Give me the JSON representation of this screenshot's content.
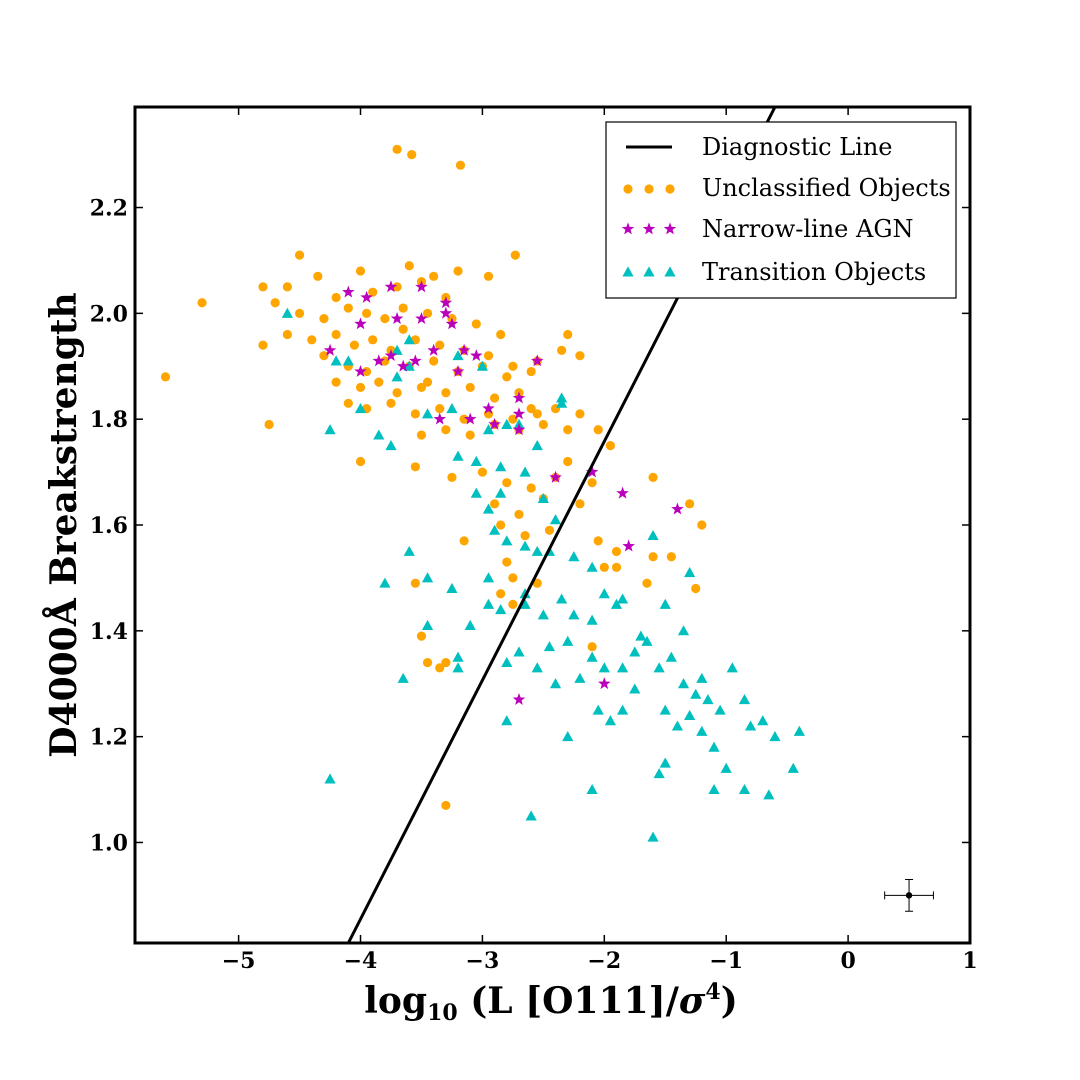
{
  "chart_data": {
    "type": "scatter",
    "xlabel": "log10 (L [O111]/σ4)",
    "xlabel_parts": {
      "prefix": "log",
      "sub": "10",
      "mid": " (L [O111]/",
      "sigma": "σ",
      "sup": "4",
      "suffix": ")"
    },
    "ylabel": "D4000Å Breakstrength",
    "xlim": [
      -5.85,
      1.0
    ],
    "ylim": [
      0.81,
      2.39
    ],
    "x_ticks": [
      -5,
      -4,
      -3,
      -2,
      -1,
      0,
      1
    ],
    "x_tick_labels": [
      "−5",
      "−4",
      "−3",
      "−2",
      "−1",
      "0",
      "1"
    ],
    "y_ticks": [
      1.0,
      1.2,
      1.4,
      1.6,
      1.8,
      2.0,
      2.2
    ],
    "y_tick_labels": [
      "1.0",
      "1.2",
      "1.4",
      "1.6",
      "1.8",
      "2.0",
      "2.2"
    ],
    "grid": false,
    "legend_position": "top-right",
    "line": {
      "name": "Diagnostic Line",
      "x": [
        -4.1,
        -0.6
      ],
      "y": [
        0.81,
        2.39
      ],
      "color": "#000000"
    },
    "error_bar": {
      "x": 0.5,
      "y": 0.9,
      "xerr": 0.2,
      "yerr": 0.03
    },
    "series": [
      {
        "name": "Unclassified Objects",
        "marker": "circle",
        "color": "#FFA500",
        "points": [
          [
            -3.7,
            2.31
          ],
          [
            -3.58,
            2.3
          ],
          [
            -3.18,
            2.28
          ],
          [
            -4.5,
            2.11
          ],
          [
            -2.73,
            2.11
          ],
          [
            -4.35,
            2.07
          ],
          [
            -4.0,
            2.08
          ],
          [
            -3.6,
            2.09
          ],
          [
            -3.4,
            2.07
          ],
          [
            -3.2,
            2.08
          ],
          [
            -2.95,
            2.07
          ],
          [
            -4.8,
            2.05
          ],
          [
            -4.6,
            2.05
          ],
          [
            -4.2,
            2.03
          ],
          [
            -3.9,
            2.04
          ],
          [
            -3.7,
            2.05
          ],
          [
            -3.5,
            2.06
          ],
          [
            -3.3,
            2.03
          ],
          [
            -5.3,
            2.02
          ],
          [
            -4.7,
            2.02
          ],
          [
            -4.5,
            2.0
          ],
          [
            -4.3,
            1.99
          ],
          [
            -4.1,
            2.01
          ],
          [
            -3.95,
            2.0
          ],
          [
            -3.8,
            1.99
          ],
          [
            -3.65,
            2.01
          ],
          [
            -3.45,
            2.0
          ],
          [
            -3.25,
            1.99
          ],
          [
            -3.05,
            1.98
          ],
          [
            -2.85,
            1.96
          ],
          [
            -4.6,
            1.96
          ],
          [
            -4.4,
            1.95
          ],
          [
            -4.2,
            1.96
          ],
          [
            -4.05,
            1.94
          ],
          [
            -3.9,
            1.95
          ],
          [
            -3.75,
            1.93
          ],
          [
            -3.55,
            1.95
          ],
          [
            -3.35,
            1.94
          ],
          [
            -3.15,
            1.93
          ],
          [
            -2.95,
            1.92
          ],
          [
            -2.75,
            1.9
          ],
          [
            -2.55,
            1.91
          ],
          [
            -2.35,
            1.93
          ],
          [
            -2.2,
            1.92
          ],
          [
            -2.3,
            1.96
          ],
          [
            -4.8,
            1.94
          ],
          [
            -4.3,
            1.92
          ],
          [
            -4.1,
            1.9
          ],
          [
            -3.95,
            1.89
          ],
          [
            -3.8,
            1.91
          ],
          [
            -3.6,
            1.9
          ],
          [
            -3.4,
            1.91
          ],
          [
            -3.2,
            1.89
          ],
          [
            -3.0,
            1.9
          ],
          [
            -2.8,
            1.88
          ],
          [
            -2.6,
            1.89
          ],
          [
            -4.2,
            1.87
          ],
          [
            -4.0,
            1.86
          ],
          [
            -3.85,
            1.87
          ],
          [
            -3.7,
            1.85
          ],
          [
            -3.5,
            1.86
          ],
          [
            -3.3,
            1.85
          ],
          [
            -3.1,
            1.86
          ],
          [
            -2.9,
            1.84
          ],
          [
            -2.7,
            1.85
          ],
          [
            -4.1,
            1.83
          ],
          [
            -3.95,
            1.82
          ],
          [
            -3.75,
            1.83
          ],
          [
            -3.55,
            1.81
          ],
          [
            -3.35,
            1.82
          ],
          [
            -3.15,
            1.8
          ],
          [
            -2.95,
            1.81
          ],
          [
            -2.75,
            1.8
          ],
          [
            -2.55,
            1.81
          ],
          [
            -2.4,
            1.82
          ],
          [
            -2.2,
            1.81
          ],
          [
            -2.3,
            1.78
          ],
          [
            -2.5,
            1.79
          ],
          [
            -2.7,
            1.78
          ],
          [
            -2.9,
            1.79
          ],
          [
            -3.1,
            1.77
          ],
          [
            -3.3,
            1.78
          ],
          [
            -3.5,
            1.77
          ],
          [
            -5.6,
            1.88
          ],
          [
            -4.75,
            1.79
          ],
          [
            -4.0,
            1.72
          ],
          [
            -3.55,
            1.71
          ],
          [
            -3.25,
            1.69
          ],
          [
            -3.0,
            1.7
          ],
          [
            -2.8,
            1.68
          ],
          [
            -2.6,
            1.67
          ],
          [
            -2.4,
            1.69
          ],
          [
            -2.3,
            1.72
          ],
          [
            -2.05,
            1.78
          ],
          [
            -1.95,
            1.75
          ],
          [
            -1.6,
            1.69
          ],
          [
            -2.2,
            1.64
          ],
          [
            -2.5,
            1.65
          ],
          [
            -2.7,
            1.62
          ],
          [
            -2.9,
            1.64
          ],
          [
            -2.1,
            1.68
          ],
          [
            -2.85,
            1.6
          ],
          [
            -2.65,
            1.58
          ],
          [
            -2.45,
            1.59
          ],
          [
            -2.05,
            1.57
          ],
          [
            -1.9,
            1.55
          ],
          [
            -1.6,
            1.54
          ],
          [
            -1.45,
            1.54
          ],
          [
            -1.3,
            1.64
          ],
          [
            -1.2,
            1.6
          ],
          [
            -3.15,
            1.57
          ],
          [
            -2.8,
            1.53
          ],
          [
            -2.75,
            1.5
          ],
          [
            -2.85,
            1.47
          ],
          [
            -2.55,
            1.49
          ],
          [
            -1.65,
            1.49
          ],
          [
            -1.25,
            1.48
          ],
          [
            -1.9,
            1.52
          ],
          [
            -2.0,
            1.52
          ],
          [
            -2.75,
            1.45
          ],
          [
            -3.55,
            1.49
          ],
          [
            -3.5,
            1.39
          ],
          [
            -3.3,
            1.34
          ],
          [
            -3.35,
            1.33
          ],
          [
            -3.45,
            1.34
          ],
          [
            -2.1,
            1.37
          ],
          [
            -3.3,
            1.07
          ],
          [
            -2.6,
            1.82
          ],
          [
            -3.45,
            1.87
          ],
          [
            -3.65,
            1.97
          ]
        ]
      },
      {
        "name": "Narrow-line AGN",
        "marker": "star",
        "color": "#BB00BB",
        "points": [
          [
            -4.1,
            2.04
          ],
          [
            -3.95,
            2.03
          ],
          [
            -3.75,
            2.05
          ],
          [
            -3.5,
            2.05
          ],
          [
            -3.3,
            2.02
          ],
          [
            -4.0,
            1.98
          ],
          [
            -3.7,
            1.99
          ],
          [
            -3.5,
            1.99
          ],
          [
            -3.25,
            1.98
          ],
          [
            -3.15,
            1.93
          ],
          [
            -4.25,
            1.93
          ],
          [
            -3.75,
            1.92
          ],
          [
            -3.55,
            1.91
          ],
          [
            -3.4,
            1.93
          ],
          [
            -3.05,
            1.92
          ],
          [
            -2.55,
            1.91
          ],
          [
            -3.2,
            1.89
          ],
          [
            -3.65,
            1.9
          ],
          [
            -4.0,
            1.89
          ],
          [
            -3.85,
            1.91
          ],
          [
            -2.95,
            1.82
          ],
          [
            -3.35,
            1.8
          ],
          [
            -3.1,
            1.8
          ],
          [
            -2.7,
            1.84
          ],
          [
            -2.7,
            1.81
          ],
          [
            -2.9,
            1.79
          ],
          [
            -2.7,
            1.78
          ],
          [
            -2.4,
            1.69
          ],
          [
            -2.1,
            1.7
          ],
          [
            -1.85,
            1.66
          ],
          [
            -1.4,
            1.63
          ],
          [
            -1.8,
            1.56
          ],
          [
            -2.7,
            1.27
          ],
          [
            -2.0,
            1.3
          ],
          [
            -3.3,
            2.0
          ]
        ]
      },
      {
        "name": "Transition Objects",
        "marker": "triangle",
        "color": "#00BFBF",
        "points": [
          [
            -4.6,
            2.0
          ],
          [
            -3.6,
            1.95
          ],
          [
            -3.7,
            1.93
          ],
          [
            -4.2,
            1.91
          ],
          [
            -4.1,
            1.91
          ],
          [
            -3.0,
            1.9
          ],
          [
            -3.2,
            1.92
          ],
          [
            -3.7,
            1.88
          ],
          [
            -3.6,
            1.9
          ],
          [
            -4.0,
            1.82
          ],
          [
            -4.25,
            1.78
          ],
          [
            -3.85,
            1.77
          ],
          [
            -3.75,
            1.75
          ],
          [
            -3.45,
            1.81
          ],
          [
            -3.25,
            1.82
          ],
          [
            -2.95,
            1.78
          ],
          [
            -2.8,
            1.79
          ],
          [
            -2.7,
            1.79
          ],
          [
            -2.55,
            1.75
          ],
          [
            -2.35,
            1.83
          ],
          [
            -2.35,
            1.84
          ],
          [
            -3.05,
            1.72
          ],
          [
            -3.2,
            1.73
          ],
          [
            -2.85,
            1.71
          ],
          [
            -2.65,
            1.7
          ],
          [
            -2.85,
            1.66
          ],
          [
            -2.95,
            1.63
          ],
          [
            -2.5,
            1.65
          ],
          [
            -3.05,
            1.66
          ],
          [
            -2.4,
            1.61
          ],
          [
            -2.8,
            1.57
          ],
          [
            -2.9,
            1.59
          ],
          [
            -2.65,
            1.56
          ],
          [
            -2.55,
            1.55
          ],
          [
            -2.25,
            1.54
          ],
          [
            -2.1,
            1.52
          ],
          [
            -2.45,
            1.55
          ],
          [
            -2.95,
            1.5
          ],
          [
            -3.25,
            1.48
          ],
          [
            -2.65,
            1.47
          ],
          [
            -2.95,
            1.45
          ],
          [
            -2.85,
            1.44
          ],
          [
            -3.1,
            1.41
          ],
          [
            -2.5,
            1.43
          ],
          [
            -2.25,
            1.43
          ],
          [
            -2.1,
            1.42
          ],
          [
            -2.35,
            1.46
          ],
          [
            -1.85,
            1.46
          ],
          [
            -1.9,
            1.45
          ],
          [
            -1.5,
            1.45
          ],
          [
            -1.3,
            1.51
          ],
          [
            -1.6,
            1.58
          ],
          [
            -2.0,
            1.47
          ],
          [
            -2.3,
            1.38
          ],
          [
            -2.45,
            1.37
          ],
          [
            -2.55,
            1.33
          ],
          [
            -2.7,
            1.36
          ],
          [
            -2.8,
            1.34
          ],
          [
            -2.4,
            1.3
          ],
          [
            -2.2,
            1.31
          ],
          [
            -2.1,
            1.35
          ],
          [
            -2.0,
            1.33
          ],
          [
            -1.85,
            1.33
          ],
          [
            -1.75,
            1.36
          ],
          [
            -1.65,
            1.38
          ],
          [
            -1.55,
            1.33
          ],
          [
            -1.45,
            1.35
          ],
          [
            -1.35,
            1.3
          ],
          [
            -1.25,
            1.28
          ],
          [
            -1.15,
            1.27
          ],
          [
            -1.05,
            1.25
          ],
          [
            -0.95,
            1.33
          ],
          [
            -0.85,
            1.27
          ],
          [
            -0.8,
            1.22
          ],
          [
            -0.7,
            1.23
          ],
          [
            -0.6,
            1.2
          ],
          [
            -1.75,
            1.29
          ],
          [
            -1.85,
            1.25
          ],
          [
            -1.95,
            1.23
          ],
          [
            -2.05,
            1.25
          ],
          [
            -2.3,
            1.2
          ],
          [
            -1.5,
            1.25
          ],
          [
            -1.4,
            1.22
          ],
          [
            -1.3,
            1.24
          ],
          [
            -1.2,
            1.21
          ],
          [
            -1.1,
            1.18
          ],
          [
            -1.0,
            1.14
          ],
          [
            -0.85,
            1.1
          ],
          [
            -0.65,
            1.09
          ],
          [
            -0.45,
            1.14
          ],
          [
            -0.4,
            1.21
          ],
          [
            -1.1,
            1.1
          ],
          [
            -1.5,
            1.15
          ],
          [
            -1.55,
            1.13
          ],
          [
            -2.1,
            1.1
          ],
          [
            -2.6,
            1.05
          ],
          [
            -1.6,
            1.01
          ],
          [
            -3.45,
            1.41
          ],
          [
            -3.65,
            1.31
          ],
          [
            -3.6,
            1.55
          ],
          [
            -3.8,
            1.49
          ],
          [
            -3.45,
            1.5
          ],
          [
            -3.2,
            1.33
          ],
          [
            -3.2,
            1.35
          ],
          [
            -2.8,
            1.23
          ],
          [
            -4.25,
            1.12
          ],
          [
            -2.65,
            1.45
          ],
          [
            -1.7,
            1.39
          ],
          [
            -1.35,
            1.4
          ],
          [
            -1.2,
            1.31
          ]
        ]
      }
    ]
  },
  "legend": {
    "items": [
      {
        "label": "Diagnostic Line",
        "kind": "line",
        "color": "#000000"
      },
      {
        "label": "Unclassified Objects",
        "kind": "circle",
        "color": "#FFA500"
      },
      {
        "label": "Narrow-line AGN",
        "kind": "star",
        "color": "#BB00BB"
      },
      {
        "label": "Transition Objects",
        "kind": "triangle",
        "color": "#00BFBF"
      }
    ]
  }
}
